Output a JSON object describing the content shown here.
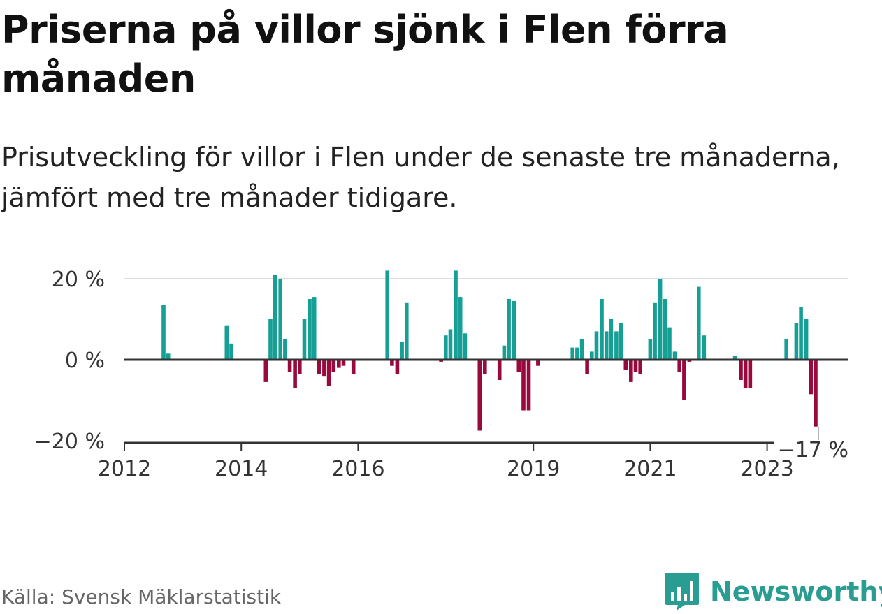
{
  "title": "Priserna på villor sjönk i Flen förra månaden",
  "subtitle": "Prisutveckling för villor i Flen under de senaste tre månaderna, jämfört med tre månader tidigare.",
  "source": "Källa: Svensk Mäklarstatistik",
  "logo": {
    "name": "Newsworthy",
    "icon": "newsworthy-logo-icon"
  },
  "colors": {
    "positive": "#16a095",
    "negative": "#980a3e",
    "grid": "#dddddd",
    "axis": "#333333"
  },
  "chart_data": {
    "type": "bar",
    "title": "Priserna på villor sjönk i Flen förra månaden",
    "subtitle": "Prisutveckling för villor i Flen under de senaste tre månaderna, jämfört med tre månader tidigare.",
    "xlabel": "",
    "ylabel": "",
    "ylim": [
      -20,
      20
    ],
    "y_ticks": [
      {
        "value": 20,
        "label": "20 %"
      },
      {
        "value": 0,
        "label": "0 %"
      },
      {
        "value": -20,
        "label": "−20 %"
      }
    ],
    "x_ticks": [
      {
        "value": 2012,
        "label": "2012"
      },
      {
        "value": 2014,
        "label": "2014"
      },
      {
        "value": 2016,
        "label": "2016"
      },
      {
        "value": 2019,
        "label": "2019"
      },
      {
        "value": 2021,
        "label": "2021"
      },
      {
        "value": 2023,
        "label": "2023"
      }
    ],
    "x_range": [
      2012,
      2024.4
    ],
    "last_value_label": "−17 %",
    "values": [
      [
        2012.67,
        13.5
      ],
      [
        2012.75,
        1.5
      ],
      [
        2013.75,
        8.5
      ],
      [
        2013.83,
        4
      ],
      [
        2014.42,
        -5.5
      ],
      [
        2014.5,
        10
      ],
      [
        2014.58,
        21
      ],
      [
        2014.67,
        20
      ],
      [
        2014.75,
        5
      ],
      [
        2014.83,
        -3
      ],
      [
        2014.92,
        -7
      ],
      [
        2015.0,
        -3.5
      ],
      [
        2015.08,
        10
      ],
      [
        2015.17,
        15
      ],
      [
        2015.25,
        15.5
      ],
      [
        2015.33,
        -3.5
      ],
      [
        2015.42,
        -4
      ],
      [
        2015.5,
        -6.5
      ],
      [
        2015.58,
        -3
      ],
      [
        2015.67,
        -2
      ],
      [
        2015.75,
        -1.5
      ],
      [
        2015.92,
        -3.5
      ],
      [
        2016.5,
        22
      ],
      [
        2016.58,
        -1.5
      ],
      [
        2016.67,
        -3.5
      ],
      [
        2016.75,
        4.5
      ],
      [
        2016.83,
        14
      ],
      [
        2017.42,
        -0.5
      ],
      [
        2017.5,
        6
      ],
      [
        2017.58,
        7.5
      ],
      [
        2017.67,
        22
      ],
      [
        2017.75,
        15.5
      ],
      [
        2017.83,
        6.5
      ],
      [
        2018.08,
        -17.5
      ],
      [
        2018.17,
        -3.5
      ],
      [
        2018.42,
        -5
      ],
      [
        2018.5,
        3.5
      ],
      [
        2018.58,
        15
      ],
      [
        2018.67,
        14.5
      ],
      [
        2018.75,
        -3
      ],
      [
        2018.83,
        -12.5
      ],
      [
        2018.92,
        -12.5
      ],
      [
        2019.08,
        -1.5
      ],
      [
        2019.67,
        3
      ],
      [
        2019.75,
        3
      ],
      [
        2019.83,
        5
      ],
      [
        2019.92,
        -3.5
      ],
      [
        2020.0,
        2
      ],
      [
        2020.08,
        7
      ],
      [
        2020.17,
        15
      ],
      [
        2020.25,
        7
      ],
      [
        2020.33,
        10
      ],
      [
        2020.42,
        7
      ],
      [
        2020.5,
        9
      ],
      [
        2020.58,
        -2.5
      ],
      [
        2020.67,
        -5.5
      ],
      [
        2020.75,
        -3
      ],
      [
        2020.83,
        -3.5
      ],
      [
        2021.0,
        5
      ],
      [
        2021.08,
        14
      ],
      [
        2021.17,
        20
      ],
      [
        2021.25,
        15
      ],
      [
        2021.33,
        8
      ],
      [
        2021.42,
        2
      ],
      [
        2021.5,
        -3
      ],
      [
        2021.58,
        -10
      ],
      [
        2021.67,
        -0.5
      ],
      [
        2021.83,
        18
      ],
      [
        2021.92,
        6
      ],
      [
        2022.45,
        1
      ],
      [
        2022.55,
        -5
      ],
      [
        2022.63,
        -7
      ],
      [
        2022.71,
        -7
      ],
      [
        2023.33,
        5
      ],
      [
        2023.5,
        9
      ],
      [
        2023.58,
        13
      ],
      [
        2023.67,
        10
      ],
      [
        2023.75,
        -8.5
      ],
      [
        2023.83,
        -16.5
      ]
    ]
  }
}
